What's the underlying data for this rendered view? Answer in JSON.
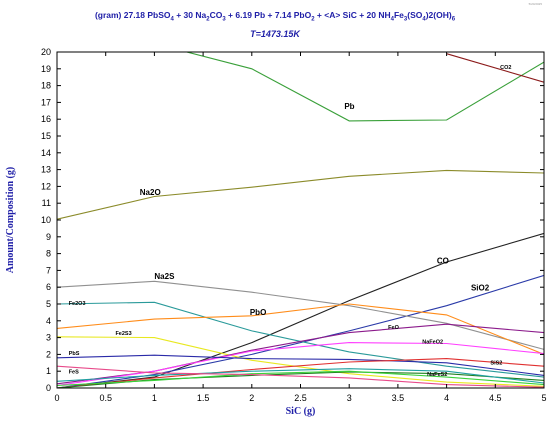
{
  "stamp": "5/20/2025",
  "title": {
    "text": "(gram) 27.18 PbSO4  +  30 Na2CO3  +  6.19 Pb  +  7.14 PbO2  +  <A> SiC  +  20 NH4Fe3(SO4)2(OH)6",
    "segments": [
      {
        "t": "(gram) 27.18 PbSO"
      },
      {
        "t": "4",
        "sub": true
      },
      {
        "t": "  +  30 Na"
      },
      {
        "t": "2",
        "sub": true
      },
      {
        "t": "CO"
      },
      {
        "t": "3",
        "sub": true
      },
      {
        "t": "  +  6.19 Pb  +  7.14 PbO"
      },
      {
        "t": "2",
        "sub": true
      },
      {
        "t": "  +  <A> SiC  +  20 NH"
      },
      {
        "t": "4",
        "sub": true
      },
      {
        "t": "Fe"
      },
      {
        "t": "3",
        "sub": true
      },
      {
        "t": "(SO"
      },
      {
        "t": "4",
        "sub": true
      },
      {
        "t": ")2(OH)"
      },
      {
        "t": "6",
        "sub": true
      }
    ]
  },
  "subtitle": "T=1473.15K",
  "chart_data": {
    "type": "line",
    "xlabel": "SiC (g)",
    "ylabel": "Amount/Composition (g)",
    "xlim": [
      0,
      5
    ],
    "ylim": [
      0,
      20
    ],
    "xticks": [
      "0",
      "0.5",
      "1",
      "1.5",
      "2",
      "2.5",
      "3",
      "3.5",
      "4",
      "4.5",
      "5"
    ],
    "yticks": [
      "0",
      "1",
      "2",
      "3",
      "4",
      "5",
      "6",
      "7",
      "8",
      "9",
      "10",
      "11",
      "12",
      "13",
      "14",
      "15",
      "16",
      "17",
      "18",
      "19",
      "20"
    ],
    "grid": false,
    "x": [
      0,
      1,
      2,
      3,
      4,
      5
    ],
    "series": [
      {
        "name": "Pb",
        "color": "#3aa03a",
        "values": [
          21.2,
          20.5,
          19.0,
          15.9,
          15.95,
          19.4
        ],
        "label_x": 2.95,
        "label_y": 16.6,
        "label_size": "normal"
      },
      {
        "name": "CO2",
        "color": "#8b1a1a",
        "values": [
          null,
          null,
          null,
          null,
          19.9,
          18.2
        ],
        "label_x": 4.55,
        "label_y": 19.0,
        "label_size": "small"
      },
      {
        "name": "Na2O",
        "color": "#8b8b2a",
        "values": [
          10.05,
          11.4,
          11.95,
          12.6,
          12.95,
          12.8
        ],
        "label_x": 0.85,
        "label_y": 11.5,
        "label_size": "normal"
      },
      {
        "name": "CO",
        "color": "#222222",
        "values": [
          0,
          0.65,
          2.7,
          5.2,
          7.5,
          9.2
        ],
        "label_x": 3.9,
        "label_y": 7.4,
        "label_size": "normal"
      },
      {
        "name": "SiO2",
        "color": "#2a3aa8",
        "values": [
          0,
          0.8,
          2.0,
          3.4,
          4.9,
          6.7
        ],
        "label_x": 4.25,
        "label_y": 5.8,
        "label_size": "normal"
      },
      {
        "name": "Na2S",
        "color": "#909090",
        "values": [
          6.0,
          6.35,
          5.7,
          4.9,
          3.85,
          2.3
        ],
        "label_x": 1.0,
        "label_y": 6.5,
        "label_size": "normal"
      },
      {
        "name": "Fe2O3",
        "color": "#2a9a9a",
        "values": [
          5.0,
          5.1,
          3.4,
          2.15,
          1.3,
          0.65
        ],
        "label_x": 0.12,
        "label_y": 4.95,
        "label_size": "small"
      },
      {
        "name": "PbO",
        "color": "#ff8c1a",
        "values": [
          3.55,
          4.1,
          4.3,
          5.0,
          4.35,
          2.0
        ],
        "label_x": 1.98,
        "label_y": 4.35,
        "label_size": "normal"
      },
      {
        "name": "Fe2S3",
        "color": "#e8e820",
        "values": [
          3.05,
          3.0,
          1.65,
          0.85,
          0.35,
          0.1
        ],
        "label_x": 0.6,
        "label_y": 3.15,
        "label_size": "small"
      },
      {
        "name": "FeO",
        "color": "#8b1a8b",
        "values": [
          0.25,
          1.0,
          2.25,
          3.3,
          3.8,
          3.3
        ],
        "label_x": 3.4,
        "label_y": 3.5,
        "label_size": "small"
      },
      {
        "name": "NaFeO2",
        "color": "#ff40ff",
        "values": [
          0.15,
          1.0,
          2.2,
          2.7,
          2.65,
          2.05
        ],
        "label_x": 3.75,
        "label_y": 2.65,
        "label_size": "small"
      },
      {
        "name": "PbS",
        "color": "#2a2aa8",
        "values": [
          1.8,
          1.95,
          1.75,
          1.7,
          1.5,
          0.75
        ],
        "label_x": 0.12,
        "label_y": 1.95,
        "label_size": "small"
      },
      {
        "name": "SiS2",
        "color": "#e03030",
        "values": [
          0,
          0.6,
          1.1,
          1.55,
          1.75,
          1.3
        ],
        "label_x": 4.45,
        "label_y": 1.4,
        "label_size": "small"
      },
      {
        "name": "NaFeS2",
        "color": "#208020",
        "values": [
          0,
          0.5,
          0.75,
          0.95,
          0.85,
          0.45
        ],
        "label_x": 3.8,
        "label_y": 0.7,
        "label_size": "small"
      },
      {
        "name": "FeS",
        "color": "#20a0a0",
        "values": [
          0.4,
          0.75,
          1.0,
          1.15,
          1.0,
          0.3
        ],
        "label_x": 0.12,
        "label_y": 0.85,
        "label_size": "small"
      },
      {
        "name": "",
        "color": "#3ad23a",
        "values": [
          0.15,
          0.45,
          0.85,
          1.0,
          0.65,
          0.2
        ]
      },
      {
        "name": "",
        "color": "#e84a8a",
        "values": [
          1.3,
          0.9,
          0.8,
          0.6,
          0.2,
          0.05
        ]
      }
    ]
  }
}
